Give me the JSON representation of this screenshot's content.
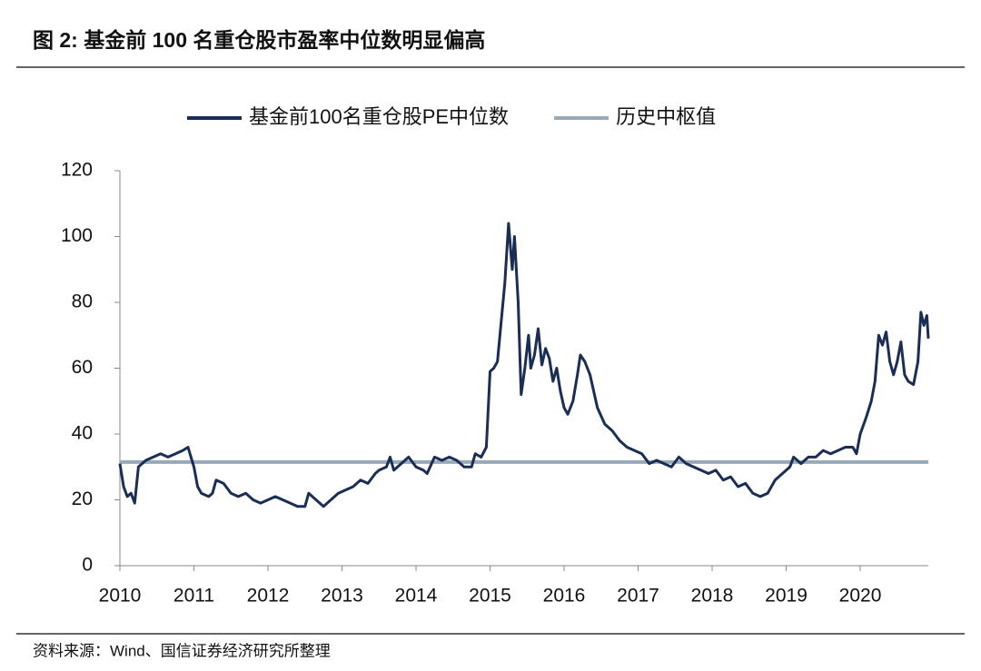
{
  "chart_data": {
    "type": "line",
    "title": "图 2: 基金前 100 名重仓股市盈率中位数明显偏高",
    "source": "资料来源：Wind、国信证券经济研究所整理",
    "xlim": [
      2010,
      2020.92
    ],
    "xticks": [
      2010,
      2011,
      2012,
      2013,
      2014,
      2015,
      2016,
      2017,
      2018,
      2019,
      2020
    ],
    "ylim": [
      0,
      120
    ],
    "yticks": [
      0,
      20,
      40,
      60,
      80,
      100,
      120
    ],
    "x": [
      2010.0,
      2010.05,
      2010.1,
      2010.15,
      2010.2,
      2010.25,
      2010.35,
      2010.45,
      2010.55,
      2010.65,
      2010.75,
      2010.85,
      2010.92,
      2011.0,
      2011.05,
      2011.1,
      2011.2,
      2011.25,
      2011.3,
      2011.4,
      2011.5,
      2011.6,
      2011.7,
      2011.8,
      2011.9,
      2012.0,
      2012.1,
      2012.2,
      2012.3,
      2012.4,
      2012.5,
      2012.55,
      2012.65,
      2012.75,
      2012.85,
      2012.95,
      2013.05,
      2013.15,
      2013.25,
      2013.35,
      2013.45,
      2013.5,
      2013.6,
      2013.65,
      2013.7,
      2013.8,
      2013.9,
      2014.0,
      2014.1,
      2014.15,
      2014.25,
      2014.35,
      2014.45,
      2014.55,
      2014.65,
      2014.75,
      2014.8,
      2014.88,
      2014.95,
      2015.0,
      2015.05,
      2015.1,
      2015.15,
      2015.2,
      2015.25,
      2015.3,
      2015.33,
      2015.38,
      2015.42,
      2015.47,
      2015.52,
      2015.55,
      2015.6,
      2015.65,
      2015.7,
      2015.75,
      2015.8,
      2015.85,
      2015.9,
      2015.95,
      2016.0,
      2016.05,
      2016.12,
      2016.18,
      2016.22,
      2016.28,
      2016.35,
      2016.45,
      2016.55,
      2016.65,
      2016.75,
      2016.85,
      2016.95,
      2017.05,
      2017.15,
      2017.25,
      2017.35,
      2017.45,
      2017.55,
      2017.65,
      2017.75,
      2017.85,
      2017.95,
      2018.05,
      2018.15,
      2018.25,
      2018.35,
      2018.45,
      2018.55,
      2018.65,
      2018.75,
      2018.85,
      2018.95,
      2019.05,
      2019.1,
      2019.2,
      2019.3,
      2019.4,
      2019.5,
      2019.6,
      2019.7,
      2019.8,
      2019.9,
      2019.95,
      2020.0,
      2020.08,
      2020.15,
      2020.2,
      2020.25,
      2020.3,
      2020.35,
      2020.4,
      2020.45,
      2020.5,
      2020.55,
      2020.6,
      2020.65,
      2020.72,
      2020.78,
      2020.82,
      2020.86,
      2020.9,
      2020.92
    ],
    "series": [
      {
        "name": "基金前100名重仓股PE中位数",
        "color": "#1a2e55",
        "values": [
          31,
          24,
          21,
          22,
          19,
          30,
          32,
          33,
          34,
          33,
          34,
          35,
          36,
          30,
          24,
          22,
          21,
          22,
          26,
          25,
          22,
          21,
          22,
          20,
          19,
          20,
          21,
          20,
          19,
          18,
          18,
          22,
          20,
          18,
          20,
          22,
          23,
          24,
          26,
          25,
          28,
          29,
          30,
          33,
          29,
          31,
          33,
          30,
          29,
          28,
          33,
          32,
          33,
          32,
          30,
          30,
          34,
          33,
          36,
          59,
          60,
          62,
          74,
          86,
          104,
          90,
          100,
          80,
          52,
          60,
          70,
          60,
          64,
          72,
          61,
          66,
          63,
          56,
          60,
          53,
          48,
          46,
          50,
          58,
          64,
          62,
          58,
          48,
          43,
          41,
          38,
          36,
          35,
          34,
          31,
          32,
          31,
          30,
          33,
          31,
          30,
          29,
          28,
          29,
          26,
          27,
          24,
          25,
          22,
          21,
          22,
          26,
          28,
          30,
          33,
          31,
          33,
          33,
          35,
          34,
          35,
          36,
          36,
          34,
          40,
          45,
          50,
          56,
          70,
          67,
          71,
          62,
          58,
          62,
          68,
          58,
          56,
          55,
          62,
          77,
          73,
          76,
          69
        ]
      }
    ],
    "reference_lines": [
      {
        "name": "历史中枢值",
        "value": 31.5,
        "color": "#9aa9b7"
      }
    ]
  }
}
